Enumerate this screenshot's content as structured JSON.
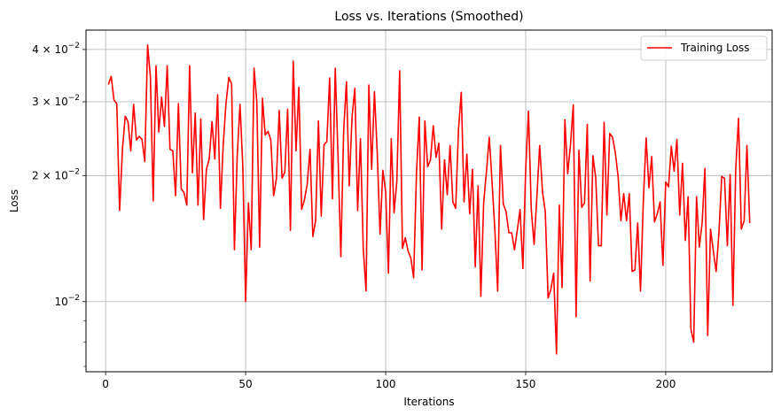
{
  "chart_data": {
    "type": "line",
    "title": "Loss vs. Iterations (Smoothed)",
    "xlabel": "Iterations",
    "ylabel": "Loss",
    "yscale": "log",
    "xlim": [
      -7,
      238
    ],
    "ylim": [
      0.0068,
      0.0445
    ],
    "xticks": [
      0,
      50,
      100,
      150,
      200
    ],
    "yticks_major": [
      {
        "value": 0.01,
        "mantissa": "10",
        "exponent": "−2"
      },
      {
        "value": 0.02,
        "mantissa": "2 × 10",
        "exponent": "−2"
      },
      {
        "value": 0.03,
        "mantissa": "3 × 10",
        "exponent": "−2"
      },
      {
        "value": 0.04,
        "mantissa": "4 × 10",
        "exponent": "−2"
      }
    ],
    "yticks_minor": [
      0.007,
      0.008,
      0.009
    ],
    "grid": true,
    "legend": {
      "position": "top-right",
      "entries": [
        {
          "label": "Training Loss",
          "color": "#ff0000"
        }
      ]
    },
    "series": [
      {
        "name": "Training Loss",
        "color": "#ff0000",
        "x_start": 1,
        "values": [
          0.033,
          0.0345,
          0.0303,
          0.0297,
          0.0165,
          0.023,
          0.0277,
          0.0269,
          0.0229,
          0.0296,
          0.0243,
          0.0248,
          0.0244,
          0.0216,
          0.041,
          0.0344,
          0.0174,
          0.0366,
          0.0254,
          0.0308,
          0.0262,
          0.0366,
          0.0231,
          0.0229,
          0.0179,
          0.0297,
          0.0186,
          0.0182,
          0.017,
          0.0366,
          0.0203,
          0.0282,
          0.017,
          0.0273,
          0.0157,
          0.0207,
          0.0219,
          0.0269,
          0.0219,
          0.0312,
          0.0167,
          0.0237,
          0.0298,
          0.0343,
          0.0331,
          0.0133,
          0.0223,
          0.0296,
          0.021,
          0.01,
          0.0172,
          0.0133,
          0.0361,
          0.03,
          0.0135,
          0.0306,
          0.025,
          0.0255,
          0.0243,
          0.0179,
          0.0197,
          0.0286,
          0.0197,
          0.0204,
          0.0288,
          0.0148,
          0.0375,
          0.0229,
          0.0325,
          0.0166,
          0.0175,
          0.0191,
          0.0231,
          0.0143,
          0.0156,
          0.027,
          0.016,
          0.0237,
          0.0241,
          0.0342,
          0.0176,
          0.0361,
          0.0222,
          0.0128,
          0.0255,
          0.0335,
          0.0189,
          0.0276,
          0.0323,
          0.0165,
          0.0245,
          0.0134,
          0.0106,
          0.0329,
          0.0207,
          0.0317,
          0.0226,
          0.0145,
          0.0206,
          0.0183,
          0.0117,
          0.0245,
          0.0163,
          0.0194,
          0.0356,
          0.0134,
          0.0142,
          0.0132,
          0.0127,
          0.0114,
          0.0202,
          0.0276,
          0.0119,
          0.027,
          0.021,
          0.0218,
          0.0263,
          0.0221,
          0.0239,
          0.0149,
          0.0218,
          0.018,
          0.0236,
          0.0173,
          0.0167,
          0.0257,
          0.0316,
          0.0173,
          0.0225,
          0.0162,
          0.0207,
          0.0121,
          0.0189,
          0.0103,
          0.0172,
          0.0205,
          0.0247,
          0.0193,
          0.0148,
          0.0106,
          0.0236,
          0.0171,
          0.0164,
          0.0146,
          0.0146,
          0.0133,
          0.0148,
          0.0166,
          0.012,
          0.0207,
          0.0285,
          0.0166,
          0.0137,
          0.0178,
          0.0236,
          0.0183,
          0.0164,
          0.0102,
          0.0107,
          0.0117,
          0.0075,
          0.017,
          0.0108,
          0.0272,
          0.0202,
          0.0237,
          0.0295,
          0.0092,
          0.023,
          0.0168,
          0.0172,
          0.0265,
          0.0112,
          0.0223,
          0.0198,
          0.0136,
          0.0136,
          0.0268,
          0.0161,
          0.0252,
          0.0247,
          0.0227,
          0.0199,
          0.0156,
          0.0181,
          0.0156,
          0.0181,
          0.0118,
          0.0119,
          0.0154,
          0.0106,
          0.0173,
          0.0246,
          0.0187,
          0.0222,
          0.0155,
          0.0162,
          0.0173,
          0.0122,
          0.0193,
          0.0188,
          0.0235,
          0.0205,
          0.0244,
          0.0161,
          0.0214,
          0.014,
          0.0178,
          0.0086,
          0.008,
          0.0178,
          0.0135,
          0.0154,
          0.0208,
          0.0083,
          0.0149,
          0.0132,
          0.0118,
          0.0146,
          0.0199,
          0.0197,
          0.0136,
          0.0201,
          0.0098,
          0.0207,
          0.0274,
          0.0149,
          0.0156,
          0.0236,
          0.0154
        ]
      }
    ]
  }
}
